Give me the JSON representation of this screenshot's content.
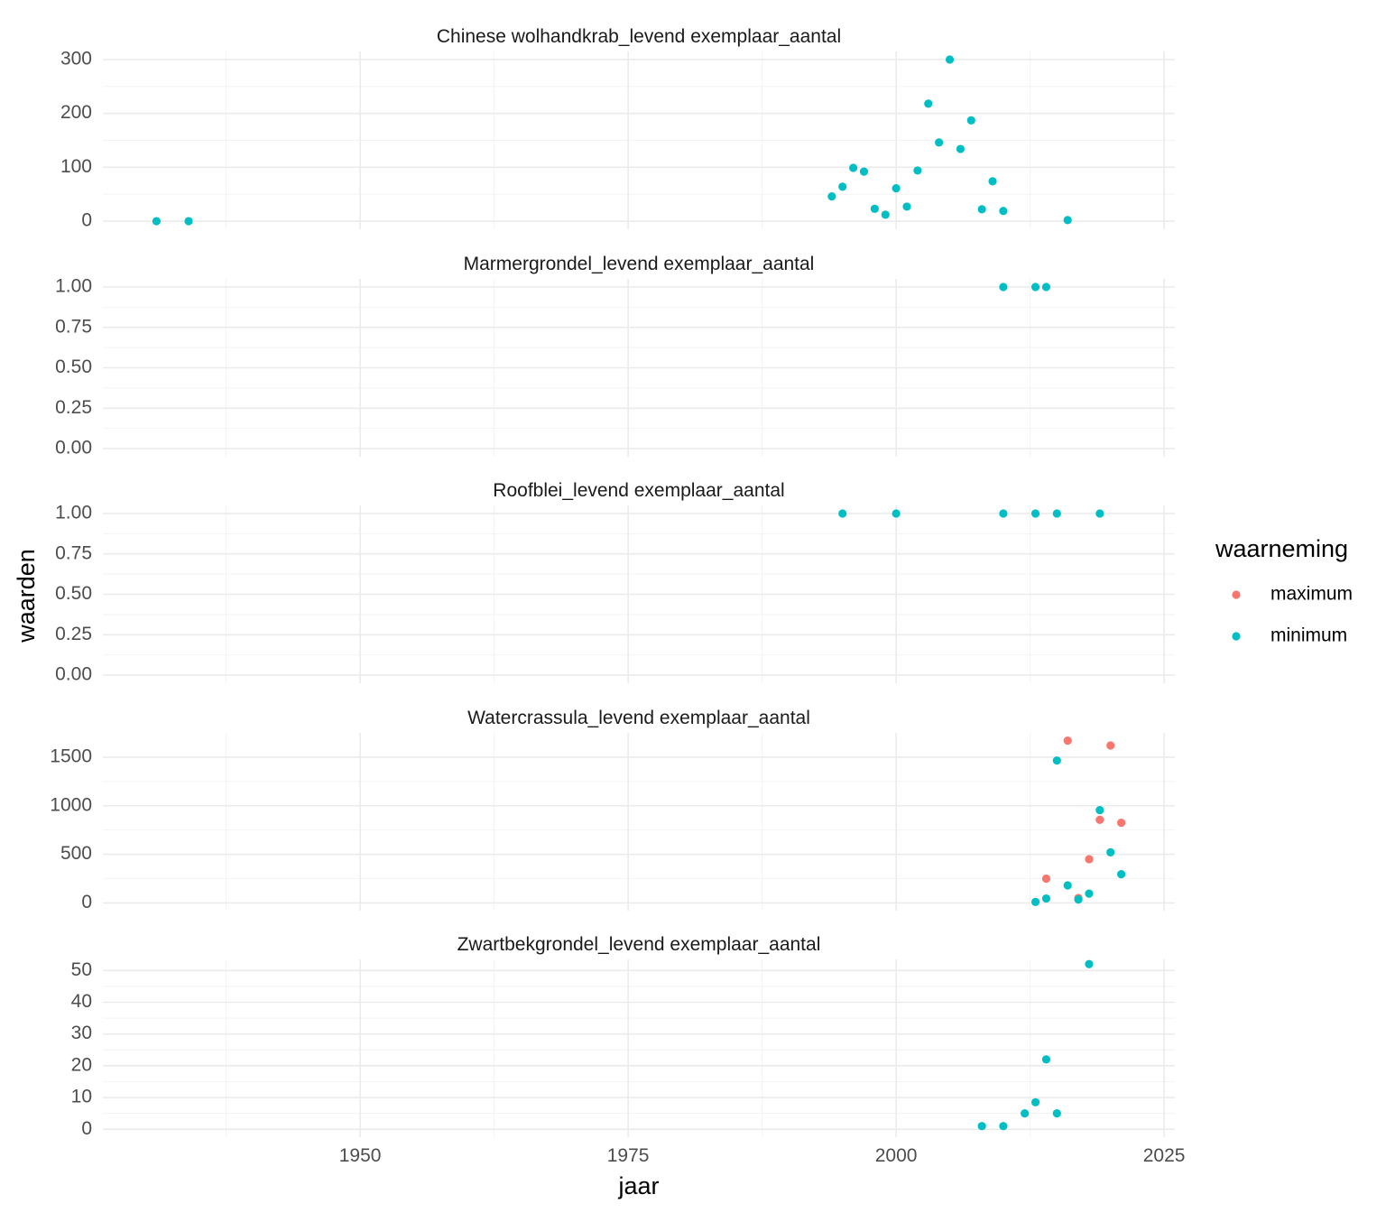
{
  "chart_data": {
    "type": "scatter",
    "xlabel": "jaar",
    "ylabel": "waarden",
    "xlim": [
      1926,
      2026
    ],
    "x_ticks": [
      1950,
      1975,
      2000,
      2025
    ],
    "legend": {
      "title": "waarneming",
      "placement": "right",
      "items": [
        {
          "label": "maximum",
          "color": "#F8766D"
        },
        {
          "label": "minimum",
          "color": "#00BFC4"
        }
      ]
    },
    "panels": [
      {
        "title": "Chinese wolhandkrab_levend exemplaar_aantal",
        "ylim": [
          -15,
          315
        ],
        "y_ticks": [
          0,
          100,
          200,
          300
        ],
        "y_tick_labels": [
          "0",
          "100",
          "200",
          "300"
        ],
        "series": [
          {
            "name": "minimum",
            "color": "#00BFC4",
            "points": [
              [
                1931,
                0
              ],
              [
                1934,
                0
              ],
              [
                1994,
                46
              ],
              [
                1995,
                64
              ],
              [
                1996,
                99
              ],
              [
                1997,
                92
              ],
              [
                1998,
                23
              ],
              [
                1999,
                12
              ],
              [
                2000,
                61
              ],
              [
                2001,
                27
              ],
              [
                2002,
                94
              ],
              [
                2003,
                218
              ],
              [
                2004,
                146
              ],
              [
                2005,
                300
              ],
              [
                2006,
                134
              ],
              [
                2007,
                187
              ],
              [
                2008,
                22
              ],
              [
                2009,
                74
              ],
              [
                2010,
                19
              ],
              [
                2016,
                2
              ]
            ]
          }
        ]
      },
      {
        "title": "Marmergrondel_levend exemplaar_aantal",
        "ylim": [
          -0.05,
          1.05
        ],
        "y_ticks": [
          0,
          0.25,
          0.5,
          0.75,
          1.0
        ],
        "y_tick_labels": [
          "0.00",
          "0.25",
          "0.50",
          "0.75",
          "1.00"
        ],
        "series": [
          {
            "name": "minimum",
            "color": "#00BFC4",
            "points": [
              [
                2010,
                1
              ],
              [
                2013,
                1
              ],
              [
                2014,
                1
              ]
            ]
          }
        ]
      },
      {
        "title": "Roofblei_levend exemplaar_aantal",
        "ylim": [
          -0.05,
          1.05
        ],
        "y_ticks": [
          0,
          0.25,
          0.5,
          0.75,
          1.0
        ],
        "y_tick_labels": [
          "0.00",
          "0.25",
          "0.50",
          "0.75",
          "1.00"
        ],
        "series": [
          {
            "name": "minimum",
            "color": "#00BFC4",
            "points": [
              [
                1995,
                1
              ],
              [
                2000,
                1
              ],
              [
                2010,
                1
              ],
              [
                2013,
                1
              ],
              [
                2015,
                1
              ],
              [
                2019,
                1
              ]
            ]
          }
        ]
      },
      {
        "title": "Watercrassula_levend exemplaar_aantal",
        "ylim": [
          -80,
          1750
        ],
        "y_ticks": [
          0,
          500,
          1000,
          1500
        ],
        "y_tick_labels": [
          "0",
          "500",
          "1000",
          "1500"
        ],
        "series": [
          {
            "name": "maximum",
            "color": "#F8766D",
            "points": [
              [
                2014,
                250
              ],
              [
                2016,
                1670
              ],
              [
                2017,
                50
              ],
              [
                2018,
                450
              ],
              [
                2019,
                855
              ],
              [
                2020,
                1620
              ],
              [
                2021,
                825
              ]
            ]
          },
          {
            "name": "minimum",
            "color": "#00BFC4",
            "points": [
              [
                2013,
                10
              ],
              [
                2014,
                45
              ],
              [
                2015,
                1465
              ],
              [
                2016,
                180
              ],
              [
                2017,
                35
              ],
              [
                2018,
                95
              ],
              [
                2019,
                955
              ],
              [
                2020,
                520
              ],
              [
                2021,
                295
              ]
            ]
          }
        ]
      },
      {
        "title": "Zwartbekgrondel_levend exemplaar_aantal",
        "ylim": [
          -2.5,
          53.5
        ],
        "y_ticks": [
          0,
          10,
          20,
          30,
          40,
          50
        ],
        "y_tick_labels": [
          "0",
          "10",
          "20",
          "30",
          "40",
          "50"
        ],
        "series": [
          {
            "name": "minimum",
            "color": "#00BFC4",
            "points": [
              [
                2008,
                1
              ],
              [
                2010,
                1
              ],
              [
                2012,
                5
              ],
              [
                2013,
                8.5
              ],
              [
                2014,
                22
              ],
              [
                2015,
                5
              ],
              [
                2018,
                52
              ]
            ]
          }
        ]
      }
    ]
  }
}
